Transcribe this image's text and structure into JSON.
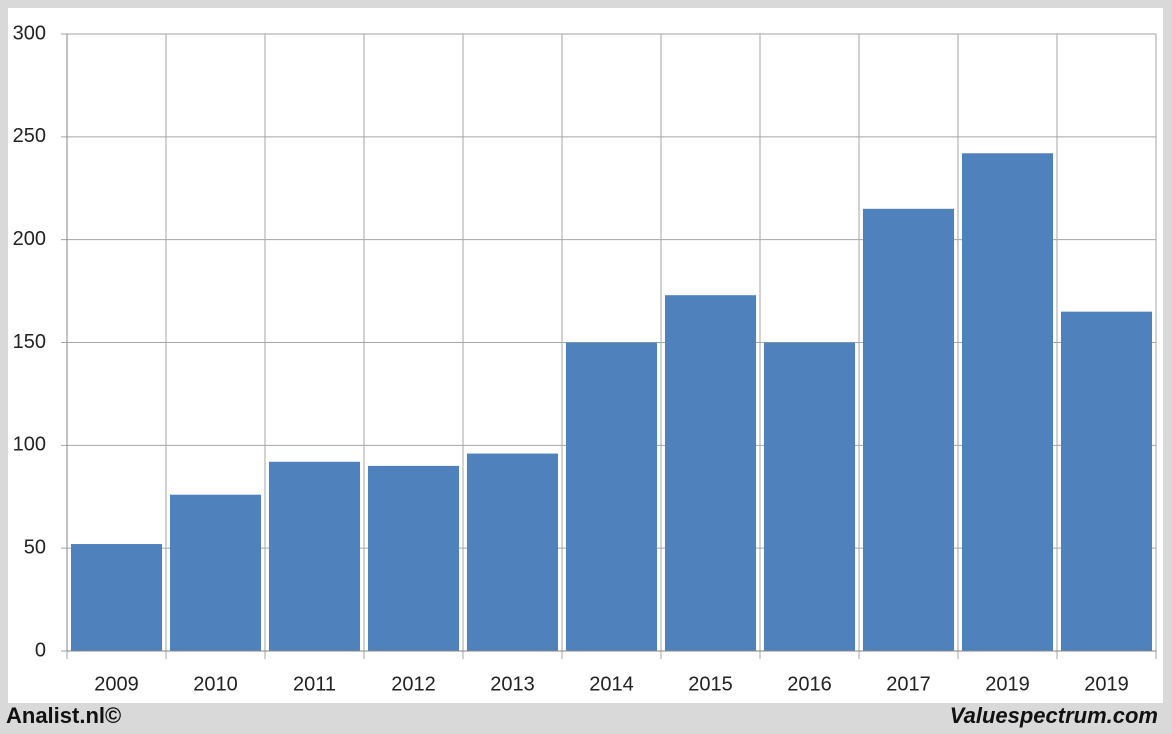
{
  "chart_data": {
    "type": "bar",
    "categories": [
      "2009",
      "2010",
      "2011",
      "2012",
      "2013",
      "2014",
      "2015",
      "2016",
      "2017",
      "2019",
      "2019"
    ],
    "values": [
      52,
      76,
      92,
      90,
      96,
      150,
      173,
      150,
      215,
      242,
      165
    ],
    "color": "#4f81bd",
    "ylim": [
      0,
      300
    ],
    "yticks": [
      0,
      50,
      100,
      150,
      200,
      250,
      300
    ],
    "grid": true,
    "footer_left": "Analist.nl©",
    "footer_right": "Valuespectrum.com"
  }
}
